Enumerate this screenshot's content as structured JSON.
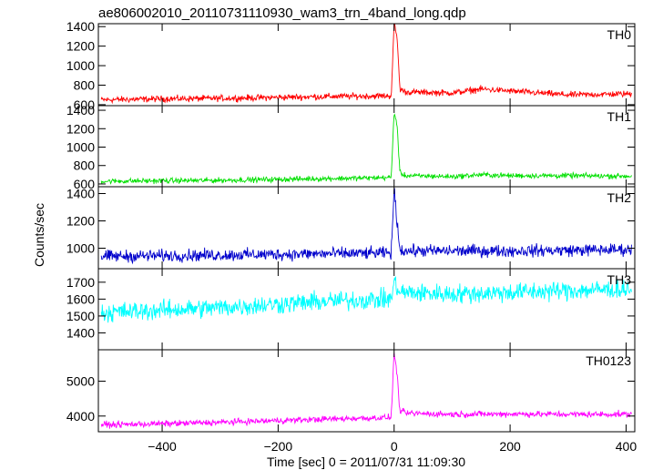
{
  "chart_data": {
    "type": "line",
    "title": "ae806002010_20110731110930_wam3_trn_4band_long.qdp",
    "xlabel": "Time [sec] 0 = 2011/07/31 11:09:30",
    "ylabel": "Counts/sec",
    "xlim": [
      -510,
      415
    ],
    "xticks": [
      -400,
      -200,
      0,
      200,
      400
    ],
    "x_tick_labels": [
      "−400",
      "−200",
      "0",
      "200",
      "400"
    ],
    "panels": [
      {
        "name": "TH0",
        "color": "#ff0000",
        "ylim": [
          590,
          1430
        ],
        "yticks": [
          600,
          800,
          1000,
          1200,
          1400
        ],
        "y_tick_labels": [
          "600",
          "800",
          "1000",
          "1200",
          "1400"
        ],
        "series_points": [
          [
            -500,
            650
          ],
          [
            -400,
            660
          ],
          [
            -300,
            665
          ],
          [
            -200,
            675
          ],
          [
            -100,
            685
          ],
          [
            -5,
            690
          ],
          [
            0,
            1430
          ],
          [
            5,
            1300
          ],
          [
            10,
            760
          ],
          [
            20,
            730
          ],
          [
            100,
            720
          ],
          [
            150,
            760
          ],
          [
            200,
            740
          ],
          [
            300,
            700
          ],
          [
            400,
            710
          ]
        ],
        "noise": 40
      },
      {
        "name": "TH1",
        "color": "#00e000",
        "ylim": [
          570,
          1450
        ],
        "yticks": [
          600,
          800,
          1000,
          1200,
          1400
        ],
        "y_tick_labels": [
          "600",
          "800",
          "1000",
          "1200",
          "1400"
        ],
        "series_points": [
          [
            -500,
            630
          ],
          [
            -400,
            635
          ],
          [
            -300,
            640
          ],
          [
            -200,
            650
          ],
          [
            -100,
            660
          ],
          [
            -5,
            670
          ],
          [
            0,
            1380
          ],
          [
            5,
            1250
          ],
          [
            10,
            720
          ],
          [
            20,
            690
          ],
          [
            100,
            680
          ],
          [
            150,
            700
          ],
          [
            200,
            690
          ],
          [
            300,
            690
          ],
          [
            400,
            685
          ]
        ],
        "noise": 35
      },
      {
        "name": "TH2",
        "color": "#0000cc",
        "ylim": [
          850,
          1450
        ],
        "yticks": [
          1000,
          1200,
          1400
        ],
        "y_tick_labels": [
          "1000",
          "1200",
          "1400"
        ],
        "series_points": [
          [
            -500,
            940
          ],
          [
            -400,
            945
          ],
          [
            -300,
            950
          ],
          [
            -200,
            955
          ],
          [
            -100,
            960
          ],
          [
            -5,
            965
          ],
          [
            0,
            1430
          ],
          [
            5,
            1200
          ],
          [
            10,
            990
          ],
          [
            20,
            980
          ],
          [
            100,
            980
          ],
          [
            200,
            980
          ],
          [
            300,
            985
          ],
          [
            400,
            990
          ]
        ],
        "noise": 55
      },
      {
        "name": "TH3",
        "color": "#00ffff",
        "ylim": [
          1300,
          1780
        ],
        "yticks": [
          1400,
          1500,
          1600,
          1700
        ],
        "y_tick_labels": [
          "1400",
          "1500",
          "1600",
          "1700"
        ],
        "series_points": [
          [
            -500,
            1520
          ],
          [
            -400,
            1535
          ],
          [
            -300,
            1550
          ],
          [
            -200,
            1570
          ],
          [
            -100,
            1590
          ],
          [
            -5,
            1600
          ],
          [
            0,
            1700
          ],
          [
            10,
            1640
          ],
          [
            100,
            1630
          ],
          [
            200,
            1640
          ],
          [
            300,
            1650
          ],
          [
            400,
            1660
          ]
        ],
        "noise": 70
      },
      {
        "name": "TH0123",
        "color": "#ff00ff",
        "ylim": [
          3550,
          5900
        ],
        "yticks": [
          4000,
          5000
        ],
        "y_tick_labels": [
          "4000",
          "5000"
        ],
        "series_points": [
          [
            -500,
            3750
          ],
          [
            -400,
            3780
          ],
          [
            -300,
            3820
          ],
          [
            -200,
            3870
          ],
          [
            -100,
            3920
          ],
          [
            -5,
            3960
          ],
          [
            0,
            5850
          ],
          [
            5,
            5200
          ],
          [
            10,
            4150
          ],
          [
            20,
            4080
          ],
          [
            100,
            4050
          ],
          [
            200,
            4060
          ],
          [
            300,
            4050
          ],
          [
            400,
            4050
          ]
        ],
        "noise": 110
      }
    ]
  }
}
